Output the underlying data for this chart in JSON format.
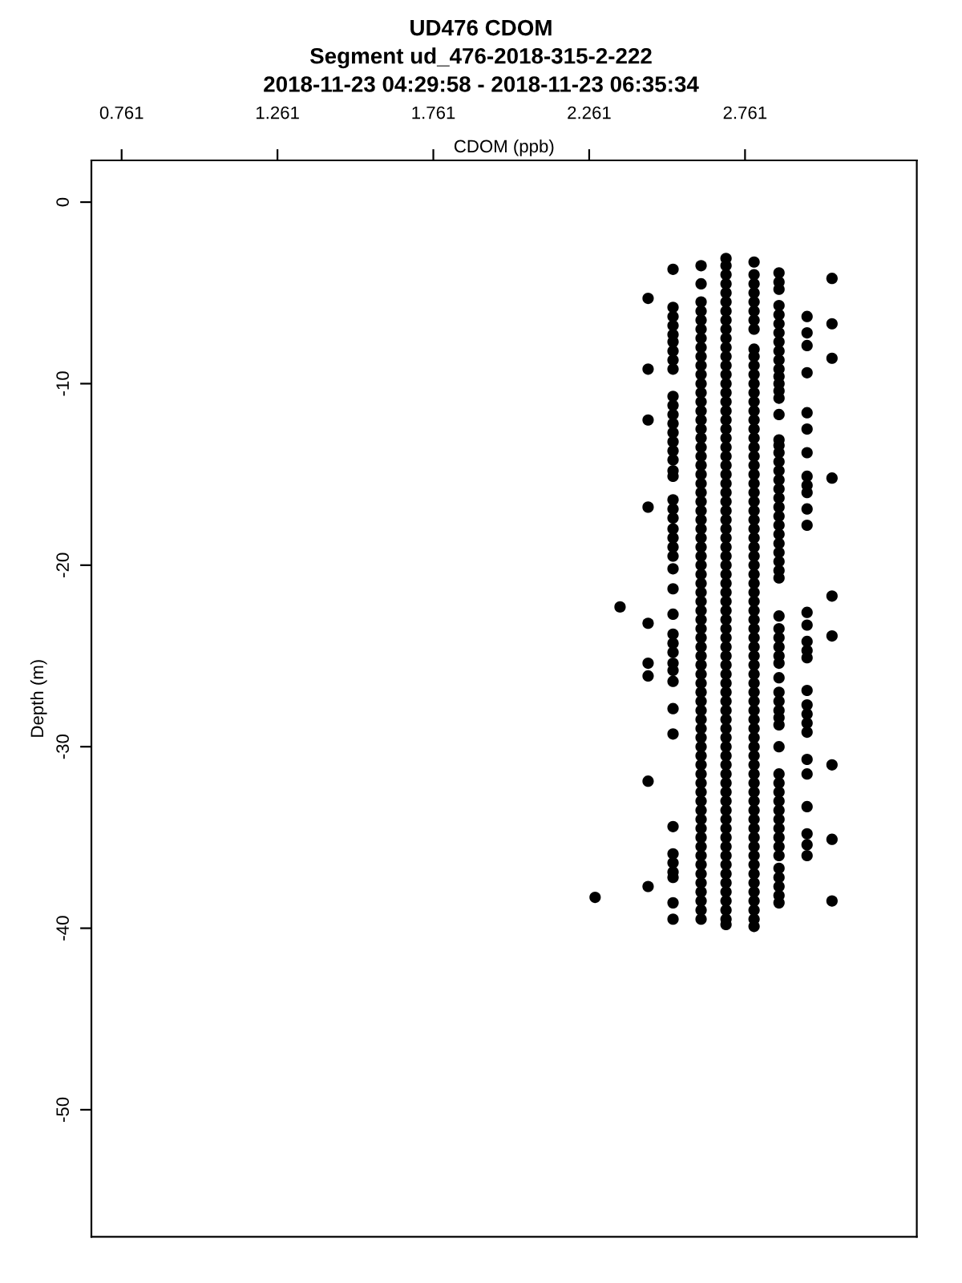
{
  "chart_data": {
    "type": "scatter",
    "title": "UD476 CDOM",
    "subtitle": "Segment ud_476-2018-315-2-222",
    "annotations": [
      "2018-11-23 04:29:58 - 2018-11-23 06:35:34"
    ],
    "xlabel": "CDOM (ppb)",
    "ylabel": "Depth (m)",
    "xlim": [
      0.664,
      3.312
    ],
    "ylim": [
      -57.0,
      2.3
    ],
    "xticks": [
      0.761,
      1.261,
      1.761,
      2.261,
      2.761
    ],
    "yticks": [
      0,
      -10,
      -20,
      -30,
      -40,
      -50
    ],
    "grid": false,
    "legend": false,
    "marker": "circle",
    "series": [
      {
        "color": "#000000",
        "x": [
          2.7,
          2.7,
          2.7,
          2.7,
          2.7,
          2.7,
          2.7,
          2.7,
          2.7,
          2.7,
          2.7,
          2.7,
          2.7,
          2.7,
          2.7,
          2.7,
          2.7,
          2.7,
          2.7,
          2.7,
          2.7,
          2.7,
          2.7,
          2.7,
          2.7,
          2.7,
          2.7,
          2.7,
          2.7,
          2.7,
          2.7,
          2.7,
          2.7,
          2.7,
          2.7,
          2.7,
          2.7,
          2.7,
          2.7,
          2.7,
          2.7,
          2.7,
          2.7,
          2.7,
          2.7,
          2.7,
          2.7,
          2.7,
          2.7,
          2.7,
          2.7,
          2.7,
          2.7,
          2.7,
          2.7,
          2.7,
          2.7,
          2.7,
          2.7,
          2.7,
          2.7,
          2.7,
          2.7,
          2.7,
          2.7,
          2.7,
          2.7,
          2.7,
          2.7,
          2.7,
          2.7,
          2.7,
          2.7,
          2.7,
          2.7
        ],
        "values": [
          -3.1,
          -3.5,
          -4,
          -4.5,
          -5,
          -5.5,
          -6,
          -6.5,
          -7,
          -7.5,
          -8,
          -8.5,
          -9,
          -9.5,
          -10,
          -10.5,
          -11,
          -11.5,
          -12,
          -12.5,
          -13,
          -13.5,
          -14,
          -14.5,
          -15,
          -15.5,
          -16,
          -16.5,
          -17,
          -17.5,
          -18,
          -18.5,
          -19,
          -19.5,
          -20,
          -20.5,
          -21,
          -21.5,
          -22,
          -22.5,
          -23,
          -23.5,
          -24,
          -24.5,
          -25,
          -25.5,
          -26,
          -26.5,
          -27,
          -27.5,
          -28,
          -28.5,
          -29,
          -29.5,
          -30,
          -30.5,
          -31,
          -31.5,
          -32,
          -32.5,
          -33,
          -33.5,
          -34,
          -34.5,
          -35,
          -35.5,
          -36,
          -36.5,
          -37,
          -37.5,
          -38,
          -38.5,
          -39,
          -39.5,
          -39.8
        ]
      },
      {
        "color": "#000000",
        "x": [
          2.79,
          2.79,
          2.79,
          2.79,
          2.79,
          2.79,
          2.79,
          2.79,
          2.79,
          2.79,
          2.79,
          2.79,
          2.79,
          2.79,
          2.79,
          2.79,
          2.79,
          2.79,
          2.79,
          2.79,
          2.79,
          2.79,
          2.79,
          2.79,
          2.79,
          2.79,
          2.79,
          2.79,
          2.79,
          2.79,
          2.79,
          2.79,
          2.79,
          2.79,
          2.79,
          2.79,
          2.79,
          2.79,
          2.79,
          2.79,
          2.79,
          2.79,
          2.79,
          2.79,
          2.79,
          2.79,
          2.79,
          2.79,
          2.79,
          2.79,
          2.79,
          2.79,
          2.79,
          2.79,
          2.79,
          2.79,
          2.79,
          2.79,
          2.79,
          2.79,
          2.79,
          2.79,
          2.79,
          2.79,
          2.79,
          2.79,
          2.79,
          2.79,
          2.79,
          2.79,
          2.79,
          2.79,
          2.79
        ],
        "values": [
          -3.3,
          -4,
          -4.5,
          -5,
          -5.5,
          -6,
          -6.5,
          -7,
          -8.1,
          -8.5,
          -9,
          -9.5,
          -10,
          -10.5,
          -11,
          -11.5,
          -12,
          -12.5,
          -13,
          -13.5,
          -14,
          -14.5,
          -15,
          -15.5,
          -16,
          -16.5,
          -17,
          -17.5,
          -18,
          -18.5,
          -19,
          -19.5,
          -20,
          -20.5,
          -21,
          -21.5,
          -22,
          -22.5,
          -23,
          -23.5,
          -24,
          -24.5,
          -25,
          -25.5,
          -26,
          -26.5,
          -27,
          -27.5,
          -28,
          -28.5,
          -29,
          -29.5,
          -30,
          -30.5,
          -31,
          -31.5,
          -32,
          -32.5,
          -33,
          -33.5,
          -34,
          -34.5,
          -35,
          -35.5,
          -36,
          -36.5,
          -37,
          -37.5,
          -38,
          -38.5,
          -39,
          -39.5,
          -39.9
        ]
      },
      {
        "color": "#000000",
        "x": [
          2.62,
          2.62,
          2.62,
          2.62,
          2.62,
          2.62,
          2.62,
          2.62,
          2.62,
          2.62,
          2.62,
          2.62,
          2.62,
          2.62,
          2.62,
          2.62,
          2.62,
          2.62,
          2.62,
          2.62,
          2.62,
          2.62,
          2.62,
          2.62,
          2.62,
          2.62,
          2.62,
          2.62,
          2.62,
          2.62,
          2.62,
          2.62,
          2.62,
          2.62,
          2.62,
          2.62,
          2.62,
          2.62,
          2.62,
          2.62,
          2.62,
          2.62,
          2.62,
          2.62,
          2.62,
          2.62,
          2.62,
          2.62,
          2.62,
          2.62,
          2.62,
          2.62,
          2.62,
          2.62,
          2.62,
          2.62,
          2.62,
          2.62,
          2.62,
          2.62,
          2.62,
          2.62,
          2.62,
          2.62,
          2.62,
          2.62,
          2.62,
          2.62,
          2.62,
          2.62,
          2.62
        ],
        "values": [
          -3.5,
          -4.5,
          -5.5,
          -6,
          -6.5,
          -7,
          -7.5,
          -8,
          -8.5,
          -9,
          -9.5,
          -10,
          -10.5,
          -11,
          -11.5,
          -12,
          -12.5,
          -13,
          -13.5,
          -14,
          -14.5,
          -15,
          -15.5,
          -16,
          -16.5,
          -17,
          -17.5,
          -18,
          -18.5,
          -19,
          -19.5,
          -20,
          -20.5,
          -21,
          -21.5,
          -22,
          -22.5,
          -23,
          -23.5,
          -24,
          -24.5,
          -25,
          -25.5,
          -26,
          -26.5,
          -27,
          -27.5,
          -28,
          -28.5,
          -29,
          -29.5,
          -30,
          -30.5,
          -31,
          -31.5,
          -32,
          -32.5,
          -33,
          -33.5,
          -34,
          -34.5,
          -35,
          -35.5,
          -36,
          -36.5,
          -37,
          -37.5,
          -38,
          -38.5,
          -39,
          -39.5
        ]
      },
      {
        "color": "#000000",
        "x": [
          2.53,
          2.53,
          2.53,
          2.53,
          2.53,
          2.53,
          2.53,
          2.53,
          2.53,
          2.53,
          2.53,
          2.53,
          2.53,
          2.53,
          2.53,
          2.53,
          2.53,
          2.53,
          2.53,
          2.53,
          2.53,
          2.53,
          2.53,
          2.53,
          2.53,
          2.53,
          2.53,
          2.53,
          2.53,
          2.53,
          2.53,
          2.53,
          2.53,
          2.53,
          2.53,
          2.53,
          2.53,
          2.53,
          2.53,
          2.53,
          2.53,
          2.53,
          2.53,
          2.53
        ],
        "values": [
          -3.7,
          -5.8,
          -6.3,
          -6.8,
          -7.3,
          -7.7,
          -8.2,
          -8.7,
          -9.2,
          -10.7,
          -11.2,
          -11.7,
          -12.2,
          -12.7,
          -13.2,
          -13.7,
          -14.2,
          -14.8,
          -15.1,
          -16.4,
          -16.9,
          -17.4,
          -18,
          -18.5,
          -19,
          -19.5,
          -20.2,
          -21.3,
          -22.7,
          -23.8,
          -24.3,
          -24.8,
          -25.4,
          -25.8,
          -26.4,
          -27.9,
          -29.3,
          -34.4,
          -35.9,
          -36.4,
          -36.9,
          -37.2,
          -38.6,
          -39.5
        ]
      },
      {
        "color": "#000000",
        "x": [
          2.87,
          2.87,
          2.87,
          2.87,
          2.87,
          2.87,
          2.87,
          2.87,
          2.87,
          2.87,
          2.87,
          2.87,
          2.87,
          2.87,
          2.87,
          2.87,
          2.87,
          2.87,
          2.87,
          2.87,
          2.87,
          2.87,
          2.87,
          2.87,
          2.87,
          2.87,
          2.87,
          2.87,
          2.87,
          2.87,
          2.87,
          2.87,
          2.87,
          2.87,
          2.87,
          2.87,
          2.87,
          2.87,
          2.87,
          2.87,
          2.87,
          2.87,
          2.87,
          2.87,
          2.87,
          2.87,
          2.87,
          2.87,
          2.87,
          2.87,
          2.87,
          2.87,
          2.87,
          2.87,
          2.87,
          2.87,
          2.87,
          2.87,
          2.87,
          2.87,
          2.87
        ],
        "values": [
          -3.9,
          -4.4,
          -4.8,
          -5.7,
          -6.2,
          -6.7,
          -7.2,
          -7.7,
          -8.2,
          -8.7,
          -9.2,
          -9.6,
          -10,
          -10.4,
          -10.8,
          -11.7,
          -13.1,
          -13.4,
          -13.8,
          -14.3,
          -14.8,
          -15.3,
          -15.8,
          -16.3,
          -16.8,
          -17.3,
          -17.8,
          -18.3,
          -18.8,
          -19.3,
          -19.8,
          -20.3,
          -20.7,
          -22.8,
          -23.5,
          -24,
          -24.5,
          -25,
          -25.4,
          -26.2,
          -27,
          -27.5,
          -28,
          -28.4,
          -28.8,
          -30,
          -31.5,
          -32,
          -32.5,
          -33,
          -33.5,
          -34,
          -34.5,
          -35,
          -35.5,
          -36,
          -36.7,
          -37.2,
          -37.7,
          -38.2,
          -38.6
        ]
      },
      {
        "color": "#000000",
        "x": [
          2.96,
          2.96,
          2.96,
          2.96,
          2.96,
          2.96,
          2.96,
          2.96,
          2.96,
          2.96,
          2.96,
          2.96,
          2.96,
          2.96,
          2.96,
          2.96,
          2.96,
          2.96,
          2.96,
          2.96,
          2.96,
          2.96,
          2.96,
          2.96,
          2.96,
          2.96,
          2.96,
          2.96
        ],
        "values": [
          -6.3,
          -7.2,
          -7.9,
          -9.4,
          -11.6,
          -12.5,
          -13.8,
          -15.1,
          -15.6,
          -16,
          -16.9,
          -17.8,
          -22.6,
          -23.3,
          -24.2,
          -24.7,
          -25.1,
          -26.9,
          -27.7,
          -28.2,
          -28.7,
          -29.2,
          -30.7,
          -31.5,
          -33.3,
          -34.8,
          -35.4,
          -36
        ]
      },
      {
        "color": "#000000",
        "x": [
          3.04,
          3.04,
          3.04,
          3.04,
          3.04,
          3.04,
          3.04,
          3.04,
          3.04
        ],
        "values": [
          -4.2,
          -6.7,
          -8.6,
          -15.2,
          -21.7,
          -23.9,
          -31,
          -35.1,
          -38.5
        ]
      },
      {
        "color": "#000000",
        "x": [
          2.45,
          2.45,
          2.45,
          2.45,
          2.45,
          2.45,
          2.45,
          2.45,
          2.45
        ],
        "values": [
          -5.3,
          -9.2,
          -12,
          -16.8,
          -23.2,
          -25.4,
          -26.1,
          -31.9,
          -37.7
        ]
      },
      {
        "color": "#000000",
        "x": [
          2.36,
          2.28
        ],
        "values": [
          -22.3,
          -38.3
        ]
      }
    ]
  }
}
